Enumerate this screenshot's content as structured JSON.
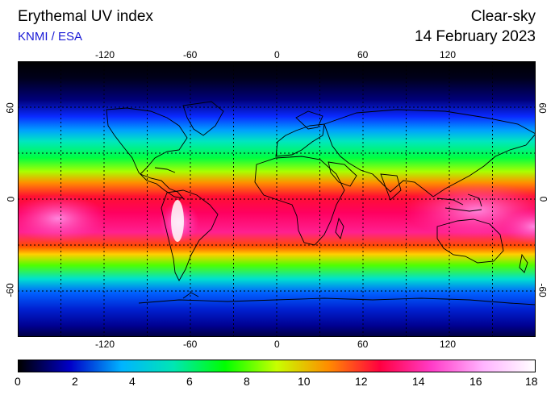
{
  "header": {
    "title": "Erythemal UV index",
    "source": "KNMI / ESA",
    "mode": "Clear-sky",
    "date": "14 February 2023"
  },
  "map": {
    "projection": "equirectangular",
    "lon_ticks": [
      "-120",
      "-60",
      "0",
      "60",
      "120"
    ],
    "lat_ticks": [
      "60",
      "0",
      "-60"
    ],
    "grid": "dashed every 30 degrees"
  },
  "colorbar": {
    "min": 0,
    "max": 18,
    "labels": [
      "0",
      "2",
      "4",
      "6",
      "8",
      "10",
      "12",
      "14",
      "16",
      "18"
    ],
    "colors": [
      "#000000",
      "#0000c8",
      "#00b4ff",
      "#00e6b4",
      "#00ff00",
      "#c8ff00",
      "#ff8c00",
      "#ff0040",
      "#ff3cc8",
      "#ffb4ff",
      "#ffffff"
    ]
  }
}
